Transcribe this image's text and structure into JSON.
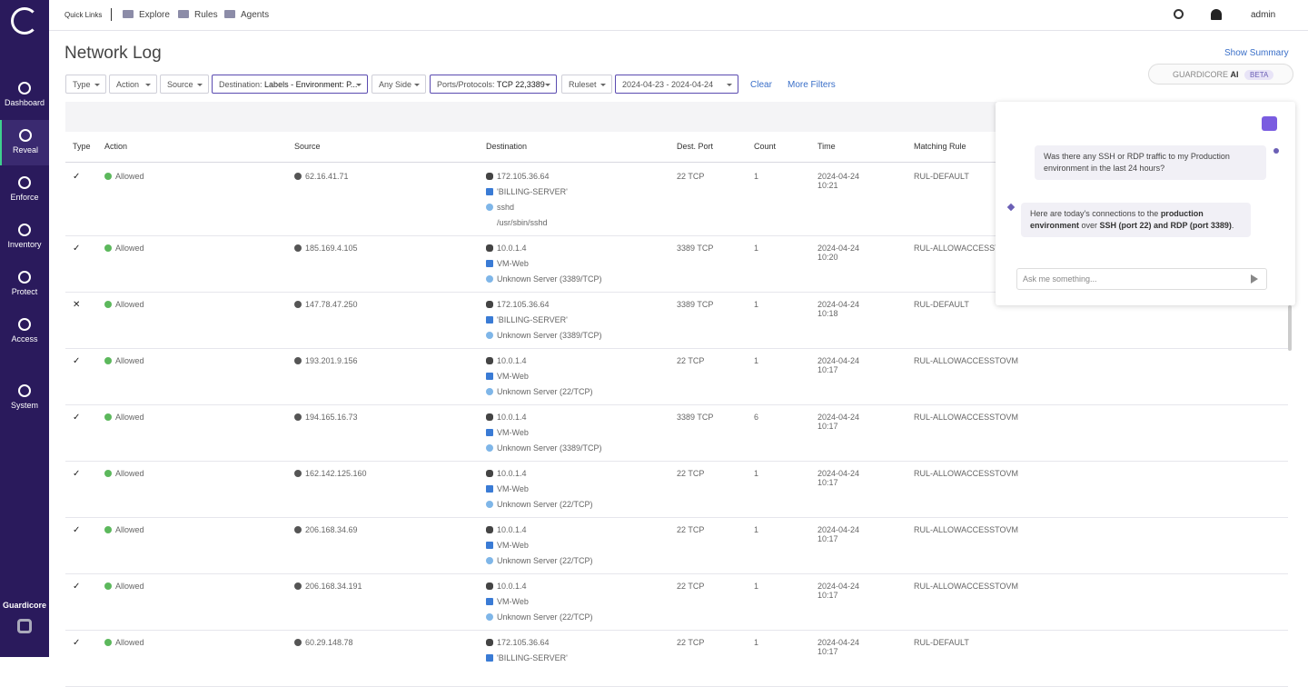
{
  "sidebar": {
    "items": [
      "Dashboard",
      "Reveal",
      "Enforce",
      "Inventory",
      "Protect",
      "Access",
      "System"
    ],
    "active": 1,
    "brand": "Guardicore"
  },
  "topbar": {
    "quick_links_label": "Quick Links",
    "links": [
      "Explore",
      "Rules",
      "Agents"
    ],
    "user": "admin"
  },
  "header": {
    "title": "Network Log",
    "show_summary": "Show Summary"
  },
  "filters": [
    {
      "label": "Type"
    },
    {
      "label": "Action"
    },
    {
      "label": "Source"
    },
    {
      "label": "Destination:",
      "value": "Labels - Environment: P..."
    },
    {
      "label": "Any Side"
    },
    {
      "label": "Ports/Protocols:",
      "value": "TCP 22,3389"
    },
    {
      "label": "Ruleset"
    },
    {
      "label": "2024-04-23 - 2024-04-24"
    }
  ],
  "filter_actions": {
    "clear": "Clear",
    "more": "More Filters"
  },
  "ai_badge": {
    "brand": "GUARDICORE",
    "product": "AI",
    "tag": "BETA"
  },
  "table": {
    "columns": [
      "Type",
      "Action",
      "Source",
      "Destination",
      "Dest. Port",
      "Count",
      "Time",
      "Matching Rule"
    ],
    "rows": [
      {
        "type": "✓",
        "action": "Allowed",
        "source": "62.16.41.71",
        "destination": [
          "172.105.36.64",
          "'BILLING-SERVER'",
          "sshd",
          "/usr/sbin/sshd"
        ],
        "port": "22 TCP",
        "count": "1",
        "date": "2024-04-24",
        "time": "10:21",
        "rule": "RUL-DEFAULT"
      },
      {
        "type": "✓",
        "action": "Allowed",
        "source": "185.169.4.105",
        "destination": [
          "10.0.1.4",
          "VM-Web",
          "Unknown Server (3389/TCP)"
        ],
        "port": "3389 TCP",
        "count": "1",
        "date": "2024-04-24",
        "time": "10:20",
        "rule": "RUL-ALLOWACCESSTOVM"
      },
      {
        "type": "✕",
        "action": "Allowed",
        "source": "147.78.47.250",
        "destination": [
          "172.105.36.64",
          "'BILLING-SERVER'",
          "Unknown Server (3389/TCP)"
        ],
        "port": "3389 TCP",
        "count": "1",
        "date": "2024-04-24",
        "time": "10:18",
        "rule": "RUL-DEFAULT"
      },
      {
        "type": "✓",
        "action": "Allowed",
        "source": "193.201.9.156",
        "destination": [
          "10.0.1.4",
          "VM-Web",
          "Unknown Server (22/TCP)"
        ],
        "port": "22 TCP",
        "count": "1",
        "date": "2024-04-24",
        "time": "10:17",
        "rule": "RUL-ALLOWACCESSTOVM"
      },
      {
        "type": "✓",
        "action": "Allowed",
        "source": "194.165.16.73",
        "destination": [
          "10.0.1.4",
          "VM-Web",
          "Unknown Server (3389/TCP)"
        ],
        "port": "3389 TCP",
        "count": "6",
        "date": "2024-04-24",
        "time": "10:17",
        "rule": "RUL-ALLOWACCESSTOVM"
      },
      {
        "type": "✓",
        "action": "Allowed",
        "source": "162.142.125.160",
        "destination": [
          "10.0.1.4",
          "VM-Web",
          "Unknown Server (22/TCP)"
        ],
        "port": "22 TCP",
        "count": "1",
        "date": "2024-04-24",
        "time": "10:17",
        "rule": "RUL-ALLOWACCESSTOVM"
      },
      {
        "type": "✓",
        "action": "Allowed",
        "source": "206.168.34.69",
        "destination": [
          "10.0.1.4",
          "VM-Web",
          "Unknown Server (22/TCP)"
        ],
        "port": "22 TCP",
        "count": "1",
        "date": "2024-04-24",
        "time": "10:17",
        "rule": "RUL-ALLOWACCESSTOVM"
      },
      {
        "type": "✓",
        "action": "Allowed",
        "source": "206.168.34.191",
        "destination": [
          "10.0.1.4",
          "VM-Web",
          "Unknown Server (22/TCP)"
        ],
        "port": "22 TCP",
        "count": "1",
        "date": "2024-04-24",
        "time": "10:17",
        "rule": "RUL-ALLOWACCESSTOVM"
      },
      {
        "type": "✓",
        "action": "Allowed",
        "source": "60.29.148.78",
        "destination": [
          "172.105.36.64",
          "'BILLING-SERVER'"
        ],
        "port": "22 TCP",
        "count": "1",
        "date": "2024-04-24",
        "time": "10:17",
        "rule": "RUL-DEFAULT"
      }
    ]
  },
  "chat": {
    "user_message": "Was there any SSH or RDP traffic to my Production environment in the last 24 hours?",
    "reply": [
      {
        "text": "Here are today's connections to the "
      },
      {
        "text": "production environment",
        "bold": true
      },
      {
        "text": " over "
      },
      {
        "text": "SSH (port 22) and RDP (port 3389)",
        "bold": true
      },
      {
        "text": "."
      }
    ],
    "placeholder": "Ask me something..."
  }
}
